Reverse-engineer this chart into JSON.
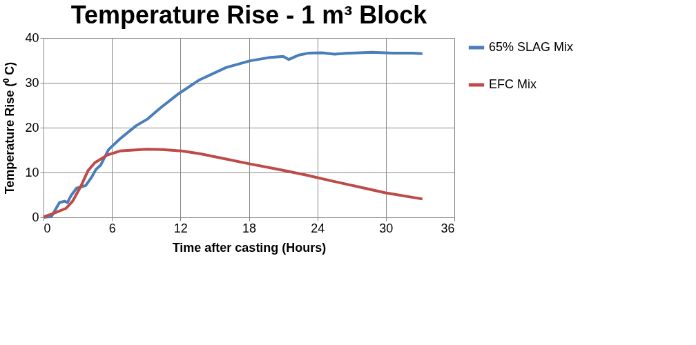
{
  "chart_data": {
    "type": "line",
    "title": "Temperature Rise - 1 m³ Block",
    "xlabel": "Time after casting (Hours)",
    "ylabel": "Temperature Rise (⁰ C)",
    "xlim": [
      0,
      36
    ],
    "xticks": [
      0,
      6,
      12,
      18,
      24,
      30,
      36
    ],
    "ylim": [
      0,
      40
    ],
    "yticks": [
      0,
      10,
      20,
      30,
      40
    ],
    "grid": true,
    "legend": "right",
    "marker": "none",
    "line_style": "solid",
    "series": [
      {
        "name": "65% SLAG Mix",
        "color": "#4a7ebb",
        "x": [
          0,
          0.7,
          1.4,
          1.85,
          2.1,
          2.4,
          2.9,
          3.7,
          4.2,
          4.6,
          5.0,
          5.7,
          6.7,
          8.1,
          9.1,
          10.2,
          11.8,
          13.7,
          16.0,
          18.1,
          19.7,
          21.0,
          21.5,
          22.4,
          23.2,
          24.4,
          25.5,
          26.7,
          28.8,
          30.6,
          32.3,
          33.2
        ],
        "values": [
          0,
          0.2,
          3.3,
          3.6,
          3.3,
          4.8,
          6.5,
          7.1,
          8.9,
          10.7,
          11.6,
          15.1,
          17.5,
          20.4,
          21.9,
          24.3,
          27.5,
          30.7,
          33.4,
          34.9,
          35.6,
          35.9,
          35.2,
          36.2,
          36.6,
          36.7,
          36.4,
          36.6,
          36.8,
          36.6,
          36.6,
          36.5
        ]
      },
      {
        "name": "EFC Mix",
        "color": "#be4b48",
        "x": [
          0,
          0.9,
          1.97,
          2.55,
          3.25,
          3.9,
          4.5,
          5.6,
          6.7,
          9.0,
          10.4,
          12.1,
          13.7,
          16.0,
          18.1,
          20.6,
          22.9,
          25.3,
          27.6,
          29.9,
          33.2
        ],
        "values": [
          0.1,
          0.9,
          2.0,
          3.6,
          6.8,
          10.4,
          12.2,
          13.9,
          14.8,
          15.2,
          15.1,
          14.8,
          14.2,
          13.0,
          11.9,
          10.7,
          9.5,
          8.1,
          6.8,
          5.5,
          4.1
        ]
      }
    ]
  }
}
